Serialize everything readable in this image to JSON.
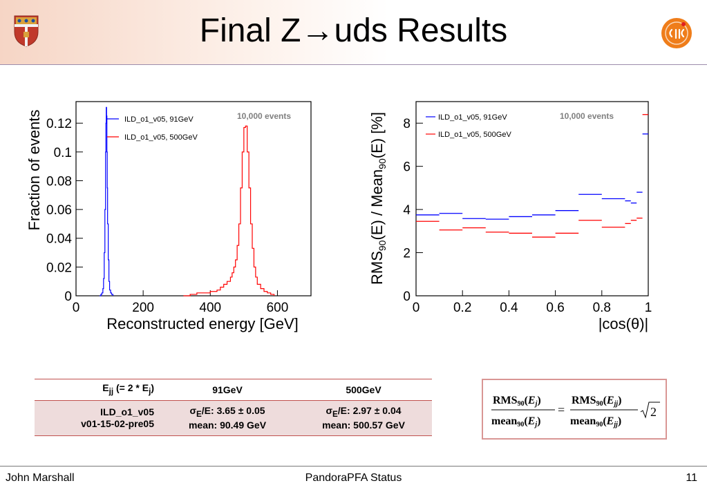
{
  "slide": {
    "title": "Final Z→uds Results",
    "footer_left": "John Marshall",
    "footer_center": "PandoraPFA Status",
    "footer_right": "11"
  },
  "colors": {
    "series_91": "#0000ff",
    "series_500": "#ff0000",
    "table_border": "#c0504d",
    "table_row": "#eedcdc"
  },
  "chart_data": [
    {
      "type": "line",
      "step": true,
      "xlabel": "Reconstructed energy [GeV]",
      "ylabel": "Fraction of events",
      "xlim": [
        0,
        700
      ],
      "ylim": [
        0,
        0.135
      ],
      "xticks": [
        "0",
        "200",
        "400",
        "600"
      ],
      "yticks": [
        "0",
        "0.02",
        "0.04",
        "0.06",
        "0.08",
        "0.1",
        "0.12"
      ],
      "annotation": "10,000 events",
      "legend_position": "top-left",
      "grid": false,
      "series": [
        {
          "name": "ILD_o1_v05, 91GeV",
          "x": [
            70,
            74,
            77,
            80,
            82,
            84,
            86,
            88,
            89,
            90,
            91,
            92,
            93,
            94,
            96,
            98,
            100,
            103,
            106,
            110
          ],
          "y": [
            0,
            0.001,
            0.002,
            0.005,
            0.012,
            0.03,
            0.06,
            0.1,
            0.12,
            0.131,
            0.125,
            0.1,
            0.075,
            0.05,
            0.025,
            0.01,
            0.004,
            0.002,
            0.001,
            0
          ]
        },
        {
          "name": "ILD_o1_v05, 500GeV",
          "x": [
            320,
            340,
            360,
            380,
            400,
            420,
            430,
            440,
            450,
            460,
            465,
            470,
            475,
            480,
            485,
            490,
            495,
            500,
            505,
            510,
            515,
            520,
            525,
            530,
            535,
            540,
            550,
            560,
            570,
            580,
            590
          ],
          "y": [
            0,
            0.001,
            0.002,
            0.002,
            0.003,
            0.004,
            0.006,
            0.008,
            0.01,
            0.013,
            0.016,
            0.02,
            0.025,
            0.035,
            0.05,
            0.075,
            0.1,
            0.117,
            0.118,
            0.1,
            0.075,
            0.05,
            0.033,
            0.02,
            0.013,
            0.008,
            0.005,
            0.003,
            0.002,
            0.001,
            0
          ]
        }
      ]
    },
    {
      "type": "line",
      "step": true,
      "xlabel": "|cos(θ)|",
      "ylabel": "RMS90(E) / Mean90(E) [%]",
      "xlim": [
        0,
        1
      ],
      "ylim": [
        0,
        9
      ],
      "xticks": [
        "0",
        "0.2",
        "0.4",
        "0.6",
        "0.8",
        "1"
      ],
      "yticks": [
        "0",
        "2",
        "4",
        "6",
        "8"
      ],
      "annotation": "10,000 events",
      "legend_position": "top-left",
      "grid": false,
      "series": [
        {
          "name": "ILD_o1_v05, 91GeV",
          "x_lo": [
            0,
            0.1,
            0.2,
            0.3,
            0.4,
            0.5,
            0.6,
            0.7,
            0.8,
            0.9,
            0.925,
            0.95,
            0.975
          ],
          "x_hi": [
            0.1,
            0.2,
            0.3,
            0.4,
            0.5,
            0.6,
            0.7,
            0.8,
            0.9,
            0.925,
            0.95,
            0.975,
            1.0
          ],
          "y": [
            3.75,
            3.82,
            3.58,
            3.55,
            3.67,
            3.75,
            3.95,
            4.7,
            4.5,
            4.4,
            4.3,
            4.8,
            7.5
          ]
        },
        {
          "name": "ILD_o1_v05, 500GeV",
          "x_lo": [
            0,
            0.1,
            0.2,
            0.3,
            0.4,
            0.5,
            0.6,
            0.7,
            0.8,
            0.9,
            0.925,
            0.95,
            0.975
          ],
          "x_hi": [
            0.1,
            0.2,
            0.3,
            0.4,
            0.5,
            0.6,
            0.7,
            0.8,
            0.9,
            0.925,
            0.95,
            0.975,
            1.0
          ],
          "y": [
            3.45,
            3.05,
            3.15,
            2.95,
            2.9,
            2.72,
            2.9,
            3.5,
            3.18,
            3.35,
            3.5,
            3.6,
            8.4
          ]
        }
      ]
    }
  ],
  "table": {
    "header": {
      "label_main": "E",
      "label_sub": "jj",
      "label_mid": " (= 2 * E",
      "label_sub2": "j",
      "label_end": ")",
      "col1": "91GeV",
      "col2": "500GeV"
    },
    "row": {
      "name1": "ILD_o1_v05",
      "name2": "v01-15-02-pre05",
      "c1_sigma": "/E: 3.65 ± 0.05",
      "c1_mean": "mean: 90.49 GeV",
      "c2_sigma": "/E: 2.97 ± 0.04",
      "c2_mean": "mean: 500.57 GeV",
      "sigma_symbol": "σ",
      "sigma_sub": "E"
    }
  },
  "formula": {
    "num_left": "RMS",
    "num_sub": "90",
    "arg_left": "E",
    "arg_left_sub": "j",
    "den_left": "mean",
    "num_right_arg_sub": "jj",
    "sqrt": "2",
    "equals": "="
  }
}
